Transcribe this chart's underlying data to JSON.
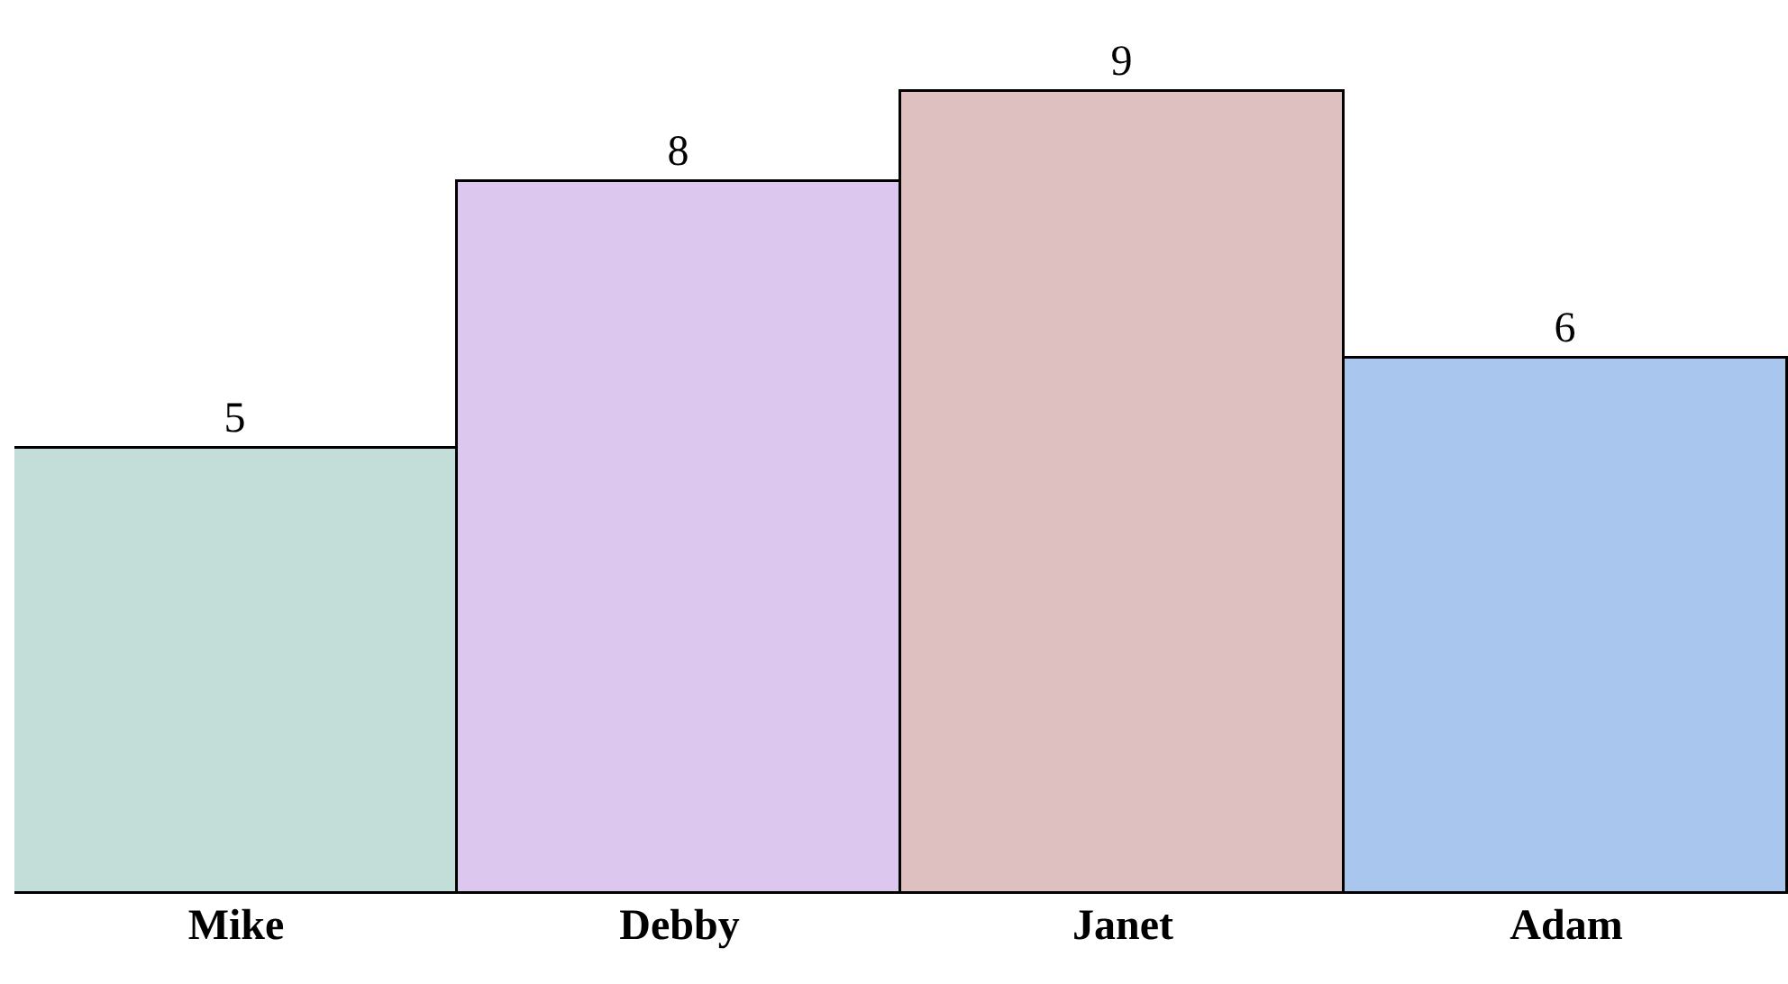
{
  "chart_data": {
    "type": "bar",
    "categories": [
      "Mike",
      "Debby",
      "Janet",
      "Adam"
    ],
    "values": [
      5,
      8,
      9,
      6
    ],
    "colors": [
      "#c3ded8",
      "#dcc8ef",
      "#dfc0c0",
      "#a9c6ef"
    ],
    "data_labels": true,
    "legend": false
  }
}
